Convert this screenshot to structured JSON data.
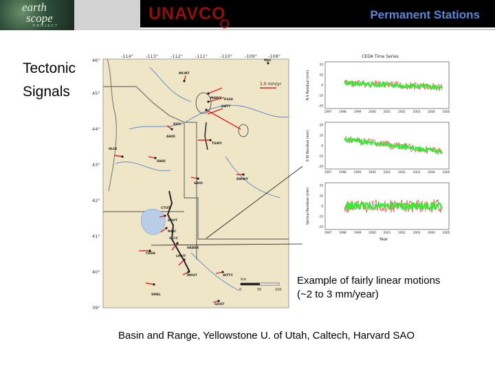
{
  "header": {
    "earthscope_logo": {
      "line1": "earth",
      "line2": "scope",
      "tag": "PROJECT"
    },
    "unavco_logo": "UNAVCO",
    "title": "Permanent Stations"
  },
  "left_label": {
    "line1": "Tectonic",
    "line2": "Signals"
  },
  "map": {
    "lon_ticks": [
      "-114°",
      "-113°",
      "-112°",
      "-111°",
      "-110°",
      "-109°",
      "-108°"
    ],
    "lat_ticks": [
      "46°",
      "45°",
      "44°",
      "43°",
      "42°",
      "41°",
      "40°",
      "39°"
    ],
    "velocity_scale": "1.0 mm/yr",
    "scale_bar": {
      "unit": "km",
      "ticks": [
        "0",
        "50",
        "100"
      ]
    },
    "stations": [
      "MJO",
      "MCMT",
      "MAWY",
      "P360",
      "KATY",
      "DEIC",
      "AHID",
      "TSWY",
      "HLID",
      "SNID",
      "RWWY",
      "GRIO",
      "CTUT",
      "EOUT",
      "NAIC",
      "SLCC",
      "CEDA",
      "LMUT",
      "HEBER",
      "MPUT",
      "WTTY",
      "SMEL",
      "GOUT"
    ],
    "colors": {
      "land": "#efe6c8",
      "rivers": "#5a8ac6",
      "borders": "#6e6e6e",
      "vectors": "#e02020",
      "lake": "#b8cde8",
      "fault": "#222222"
    }
  },
  "timeseries": {
    "title": "CEDA Time Series",
    "x_ticks": [
      "1997",
      "1998",
      "1999",
      "2000",
      "2001",
      "2002",
      "2003",
      "2004",
      "2005"
    ],
    "xlabel": "Year",
    "panels": [
      {
        "ylabel": "N-S Residual (mm)",
        "y_ticks": [
          "20",
          "10",
          "0",
          "-10",
          "-20"
        ]
      },
      {
        "ylabel": "E-W Residual (mm)",
        "y_ticks": [
          "20",
          "10",
          "0",
          "-10",
          "-20"
        ]
      },
      {
        "ylabel": "Vertical Residual (mm)",
        "y_ticks": [
          "20",
          "10",
          "0",
          "-10",
          "-20"
        ]
      }
    ],
    "colors": {
      "raw": "#e02020",
      "filtered": "#33ee33"
    }
  },
  "caption": {
    "line1": "Example of fairly linear motions",
    "line2": "(~2 to 3 mm/year)"
  },
  "footer": "Basin and Range, Yellowstone U. of Utah, Caltech, Harvard SAO"
}
